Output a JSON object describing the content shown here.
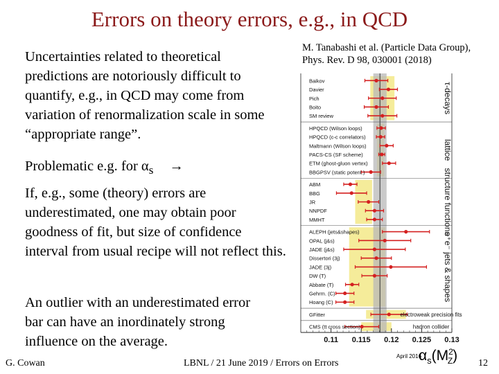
{
  "slide": {
    "title": "Errors on theory errors, e.g., in QCD",
    "paragraph1": "Uncertainties related to theoretical predictions are notoriously difficult to quantify, e.g., in QCD may come from variation of renormalization scale in some “appropriate range”.",
    "paragraph2_text": "Problematic e.g. for α",
    "paragraph2_sub": "s",
    "paragraph2_arrow": "→",
    "paragraph3": "If, e.g., some (theory) errors are underestimated, one may obtain poor goodness of fit, but size of confidence interval from usual recipe will not reflect this.",
    "paragraph4": "An outlier with an underestimated error bar can have an inordinately strong influence on the average.",
    "reference_line1": "M. Tanabashi et al. (Particle Data Group),",
    "reference_line2": "Phys. Rev. D 98, 030001 (2018)"
  },
  "footer": {
    "author": "G. Cowan",
    "event": "LBNL / 21 June 2019 / Errors on Errors",
    "page": "12"
  },
  "figure": {
    "date_label": "April 2016",
    "xlabel": "αs(M²Z)"
  },
  "chart_data": {
    "type": "scatter",
    "x_range": [
      0.105,
      0.13
    ],
    "x_ticks": [
      "0.11",
      "0.115",
      "0.12",
      "0.125",
      "0.13"
    ],
    "world_average": 0.1181,
    "world_average_band": [
      0.117,
      0.1192
    ],
    "colors": {
      "points": "#d42020",
      "band": "#f5ec9a",
      "average": "#8a8a8a"
    },
    "groups": [
      {
        "name": "τ-decays",
        "band": [
          0.1165,
          0.1205
        ],
        "items": [
          {
            "label": "Baikov",
            "value": 0.1175,
            "err": 0.0019
          },
          {
            "label": "Davier",
            "value": 0.1195,
            "err": 0.0015
          },
          {
            "label": "Pich",
            "value": 0.1185,
            "err": 0.0023
          },
          {
            "label": "Boito",
            "value": 0.1175,
            "err": 0.002
          },
          {
            "label": "SM review",
            "value": 0.1185,
            "err": 0.0024
          }
        ]
      },
      {
        "name": "lattice",
        "band": [
          0.1176,
          0.1188
        ],
        "items": [
          {
            "label": "HPQCD (Wilson loops)",
            "value": 0.1183,
            "err": 0.0007
          },
          {
            "label": "HPQCD (c-c correlators)",
            "value": 0.1182,
            "err": 0.0007
          },
          {
            "label": "Maltmann (Wilson loops)",
            "value": 0.1192,
            "err": 0.0011
          },
          {
            "label": "PACS-CS (SF scheme)",
            "value": 0.1184,
            "err": 0.0005
          },
          {
            "label": "ETM (ghost-gluon vertex)",
            "value": 0.1196,
            "err": 0.0011
          },
          {
            "label": "BBGPSV (static potent.)",
            "value": 0.1166,
            "err": 0.0016
          }
        ]
      },
      {
        "name": "structure functions",
        "band": [
          0.114,
          0.1168
        ],
        "items": [
          {
            "label": "ABM",
            "value": 0.1132,
            "err": 0.0011
          },
          {
            "label": "BBG",
            "value": 0.1134,
            "err": 0.0025
          },
          {
            "label": "JR",
            "value": 0.1162,
            "err": 0.0017
          },
          {
            "label": "NNPDF",
            "value": 0.1172,
            "err": 0.0015
          },
          {
            "label": "MMHT",
            "value": 0.1172,
            "err": 0.0013
          }
        ]
      },
      {
        "name": "e⁺e⁻ jets & shapes",
        "band": [
          0.113,
          0.119
        ],
        "items": [
          {
            "label": "ALEPH (jets&shapes)",
            "value": 0.1224,
            "err": 0.0039
          },
          {
            "label": "OPAL (j&s)",
            "value": 0.1189,
            "err": 0.0043
          },
          {
            "label": "JADE (j&s)",
            "value": 0.1172,
            "err": 0.0051
          },
          {
            "label": "Dissertori (3j)",
            "value": 0.1175,
            "err": 0.0025
          },
          {
            "label": "JADE (3j)",
            "value": 0.1199,
            "err": 0.0059
          },
          {
            "label": "DW (T)",
            "value": 0.1172,
            "err": 0.0021
          },
          {
            "label": "Abbate (T)",
            "value": 0.1135,
            "err": 0.0011
          },
          {
            "label": "Gehrm. (C)",
            "value": 0.1123,
            "err": 0.0015
          },
          {
            "label": "Hoang (C)",
            "value": 0.1123,
            "err": 0.0015
          }
        ]
      },
      {
        "name": "electroweak precision fits",
        "band": [
          0.1158,
          0.1224
        ],
        "items": [
          {
            "label": "GFitter",
            "value": 0.1196,
            "err": 0.003
          }
        ]
      },
      {
        "name": "hadron collider",
        "band": [
          0.115,
          0.12
        ],
        "items": [
          {
            "label": "CMS (tt cross section)",
            "value": 0.1151,
            "err": 0.0028
          }
        ]
      }
    ]
  }
}
